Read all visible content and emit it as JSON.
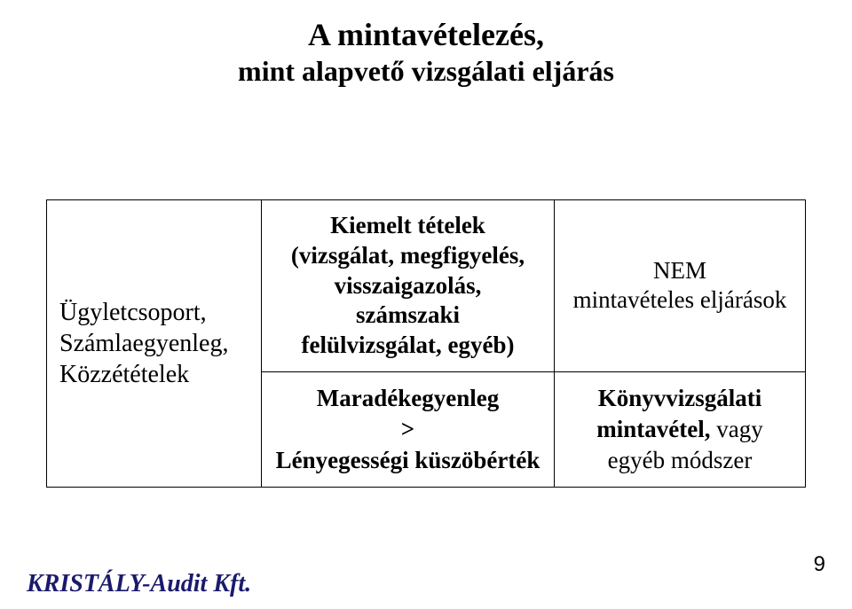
{
  "title": {
    "line1": "A mintavételezés,",
    "line2": "mint alapvető vizsgálati eljárás"
  },
  "table": {
    "left": {
      "l1": "Ügyletcsoport,",
      "l2": "Számlaegyenleg,",
      "l3": "Közzétételek"
    },
    "top_mid": {
      "l1": "Kiemelt tételek",
      "l2": "(vizsgálat, megfigyelés,",
      "l3": "visszaigazolás,",
      "l4": "számszaki",
      "l5": "felülvizsgálat, egyéb)"
    },
    "top_right": {
      "l1": "NEM",
      "l2": "mintavételes eljárások"
    },
    "bot_mid": {
      "l1": "Maradékegyenleg",
      "l2": ">",
      "l3": "Lényegességi küszöbérték"
    },
    "bot_right": {
      "bold1": "Könyvvizsgálati",
      "bold2": "mintavétel,",
      "reg2": " vagy",
      "reg3": "egyéb módszer"
    }
  },
  "footer": {
    "logo": "KRISTÁLY-Audit Kft.",
    "page_number": "9"
  },
  "colors": {
    "background": "#ffffff",
    "text": "#000000",
    "footer_logo": "#1a1a6c",
    "border": "#000000"
  },
  "fonts": {
    "body_family": "Times New Roman",
    "footer_family": "Times New Roman",
    "title_size_pt": 27,
    "cell_size_pt": 20
  }
}
